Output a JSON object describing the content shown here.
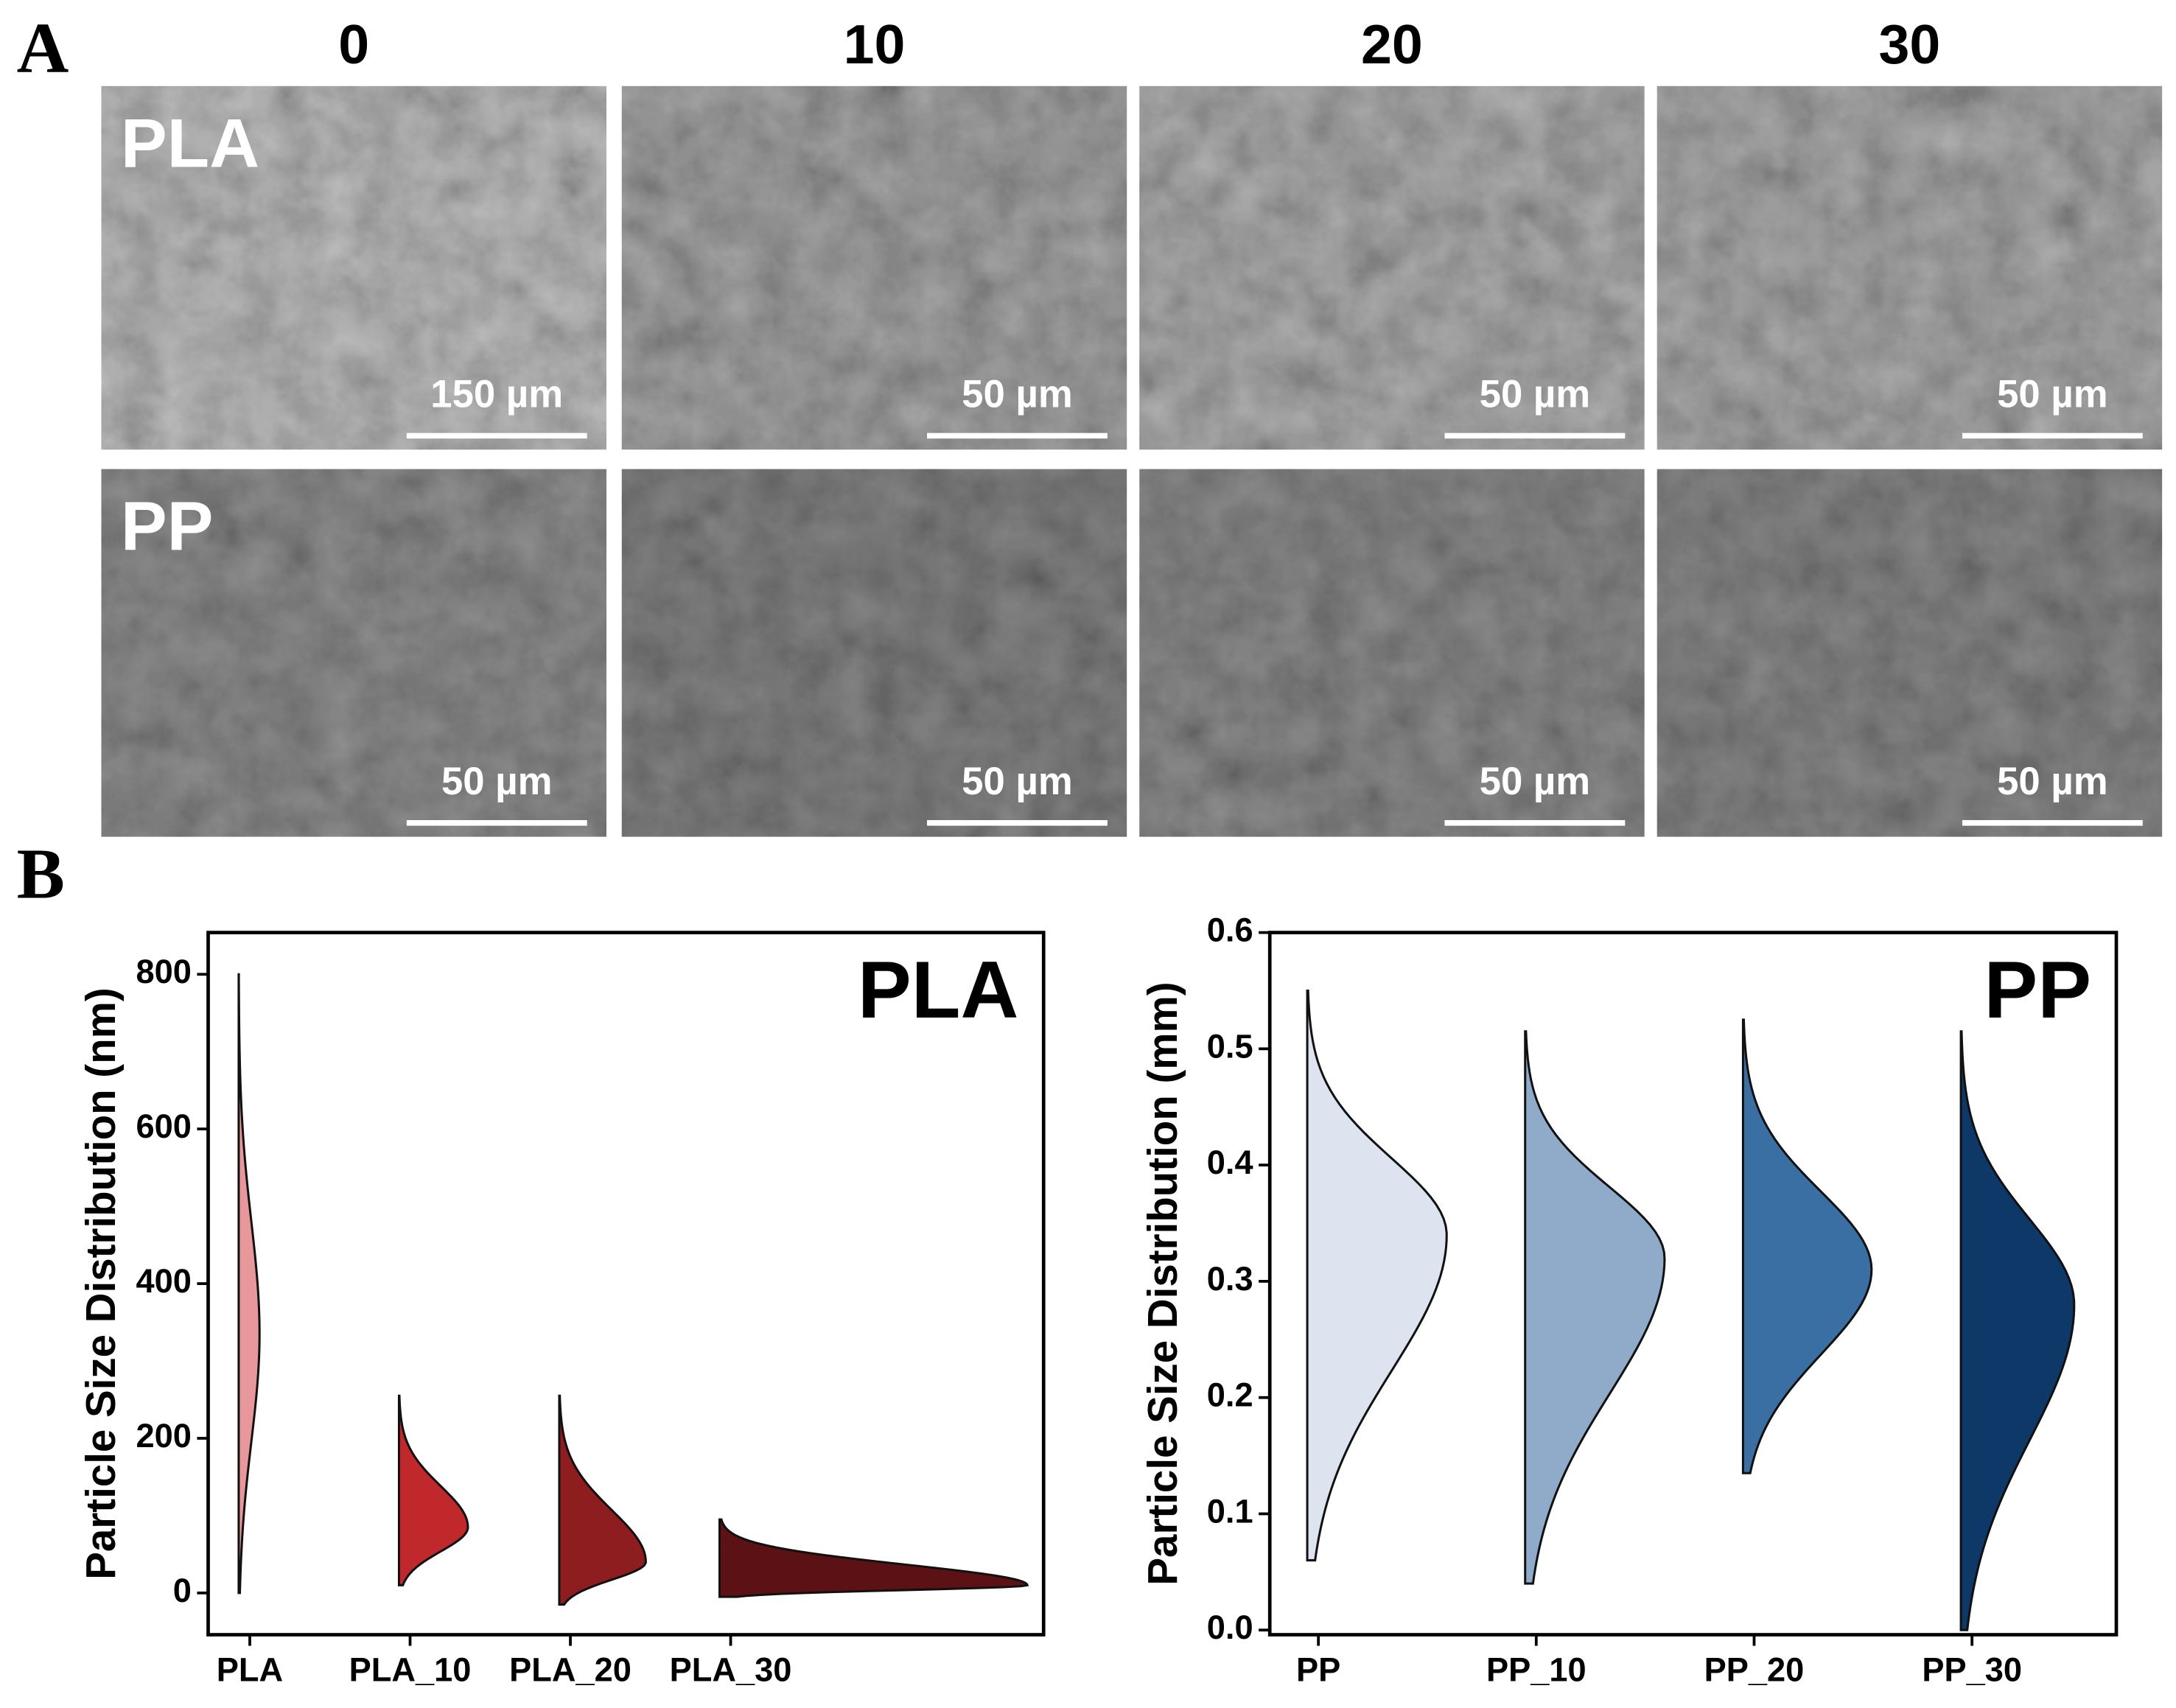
{
  "panel_a": {
    "label": "A",
    "columns": [
      "0",
      "10",
      "20",
      "30"
    ],
    "rows": [
      {
        "label": "PLA",
        "scale_bars": [
          "150 µm",
          "50 µm",
          "50 µm",
          "50 µm"
        ]
      },
      {
        "label": "PP",
        "scale_bars": [
          "50 µm",
          "50 µm",
          "50 µm",
          "50 µm"
        ]
      }
    ]
  },
  "panel_b": {
    "label": "B"
  },
  "chart_data": [
    {
      "type": "violin",
      "title": "PLA",
      "y_label": "Particle Size Distribution (nm)",
      "categories": [
        "PLA",
        "PLA_10",
        "PLA_20",
        "PLA_30"
      ],
      "ylim": [
        -54,
        854
      ],
      "yticks": [
        0,
        200,
        400,
        600,
        800
      ],
      "violins": [
        {
          "min": 0,
          "mode": 335,
          "max": 800,
          "density": 0.13,
          "color": "#e8979a"
        },
        {
          "min": 10,
          "mode": 85,
          "max": 255,
          "density": 0.43,
          "color": "#c0282b"
        },
        {
          "min": -15,
          "mode": 40,
          "max": 255,
          "density": 0.54,
          "color": "#8e1d1f"
        },
        {
          "min": -5,
          "mode": 10,
          "max": 95,
          "density": 1.92,
          "color": "#5c1214"
        }
      ]
    },
    {
      "type": "violin",
      "title": "PP",
      "y_label": "Particle Size Distribution (mm)",
      "categories": [
        "PP",
        "PP_10",
        "PP_20",
        "PP_30"
      ],
      "ylim": [
        -0.004,
        0.6
      ],
      "yticks": [
        {
          "value": 0,
          "label": "0.0"
        },
        0.1,
        0.2,
        0.3,
        0.4,
        0.5,
        0.6
      ],
      "violins": [
        {
          "min": 0.06,
          "mode": 0.34,
          "max": 0.55,
          "density": 0.64,
          "color": "#dde3ef"
        },
        {
          "min": 0.04,
          "mode": 0.32,
          "max": 0.515,
          "density": 0.64,
          "color": "#8fabc9"
        },
        {
          "min": 0.135,
          "mode": 0.31,
          "max": 0.525,
          "density": 0.59,
          "color": "#3a6fa3"
        },
        {
          "min": 0.0,
          "mode": 0.28,
          "max": 0.515,
          "density": 0.52,
          "color": "#0d3868"
        }
      ]
    }
  ]
}
